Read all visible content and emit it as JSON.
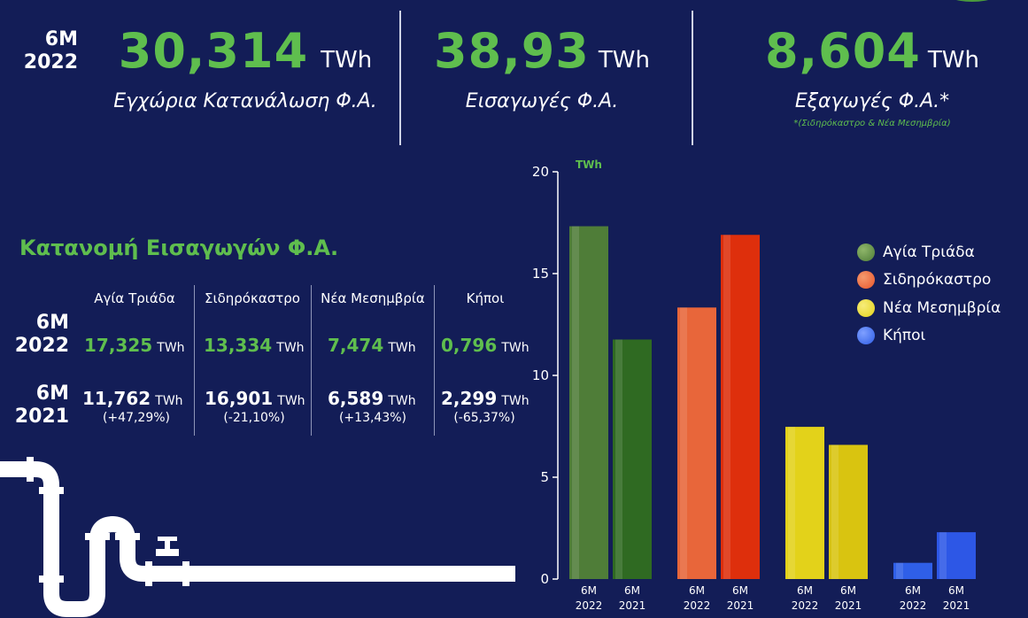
{
  "colors": {
    "green_text": "#5fbe4e",
    "background": "#131d57",
    "agia_triada": "#4f7d38",
    "sidirokastro": "#e8552b",
    "nea_mesimvria": "#e3d21a",
    "kipoi": "#2e5de6"
  },
  "header": {
    "period_line1": "6M",
    "period_line2": "2022",
    "consumption": {
      "value": "30,314",
      "unit": "TWh",
      "label": "Εγχώρια Κατανάλωση Φ.Α."
    },
    "imports": {
      "value": "38,93",
      "unit": "TWh",
      "label": "Εισαγωγές Φ.Α."
    },
    "exports": {
      "value": "8,604",
      "unit": "TWh",
      "label": "Εξαγωγές Φ.Α.*",
      "footnote": "*(Σιδηρόκαστρο & Νέα Μεσημβρία)"
    }
  },
  "imports_table": {
    "title": "Κατανομή Εισαγωγών Φ.Α.",
    "columns": [
      "Αγία Τριάδα",
      "Σιδηρόκαστρο",
      "Νέα Μεσημβρία",
      "Κήποι"
    ],
    "unit": "TWh",
    "rows": [
      {
        "label1": "6M",
        "label2": "2022",
        "values": [
          "17,325",
          "13,334",
          "7,474",
          "0,796"
        ]
      },
      {
        "label1": "6M",
        "label2": "2021",
        "values": [
          "11,762",
          "16,901",
          "6,589",
          "2,299"
        ],
        "changes": [
          "(+47,29%)",
          "(-21,10%)",
          "(+13,43%)",
          "(-65,37%)"
        ]
      }
    ]
  },
  "chart_data": {
    "type": "bar",
    "ylabel": "TWh",
    "ylim": [
      0,
      20
    ],
    "yticks": [
      0,
      5,
      10,
      15,
      20
    ],
    "groups": [
      "Αγία Τριάδα",
      "Σιδηρόκαστρο",
      "Νέα Μεσημβρία",
      "Κήποι"
    ],
    "periods": [
      {
        "line1": "6M",
        "line2": "2022"
      },
      {
        "line1": "6M",
        "line2": "2021"
      }
    ],
    "series": [
      {
        "name": "Αγία Τριάδα",
        "values": [
          17.325,
          11.762
        ],
        "colors": [
          "#4f7d38",
          "#2f6a22"
        ]
      },
      {
        "name": "Σιδηρόκαστρο",
        "values": [
          13.334,
          16.901
        ],
        "colors": [
          "#e8663a",
          "#de2f0c"
        ]
      },
      {
        "name": "Νέα Μεσημβρία",
        "values": [
          7.474,
          6.589
        ],
        "colors": [
          "#e3d21a",
          "#d9c410"
        ]
      },
      {
        "name": "Κήποι",
        "values": [
          0.796,
          2.299
        ],
        "colors": [
          "#2f5fe8",
          "#2d57e6"
        ]
      }
    ],
    "legend": {
      "position": "right",
      "items": [
        {
          "label": "Αγία Τριάδα",
          "color": "#4f7d38"
        },
        {
          "label": "Σιδηρόκαστρο",
          "color": "#e8552b"
        },
        {
          "label": "Νέα Μεσημβρία",
          "color": "#e3d21a"
        },
        {
          "label": "Κήποι",
          "color": "#2e5de6"
        }
      ]
    },
    "grid": false
  }
}
